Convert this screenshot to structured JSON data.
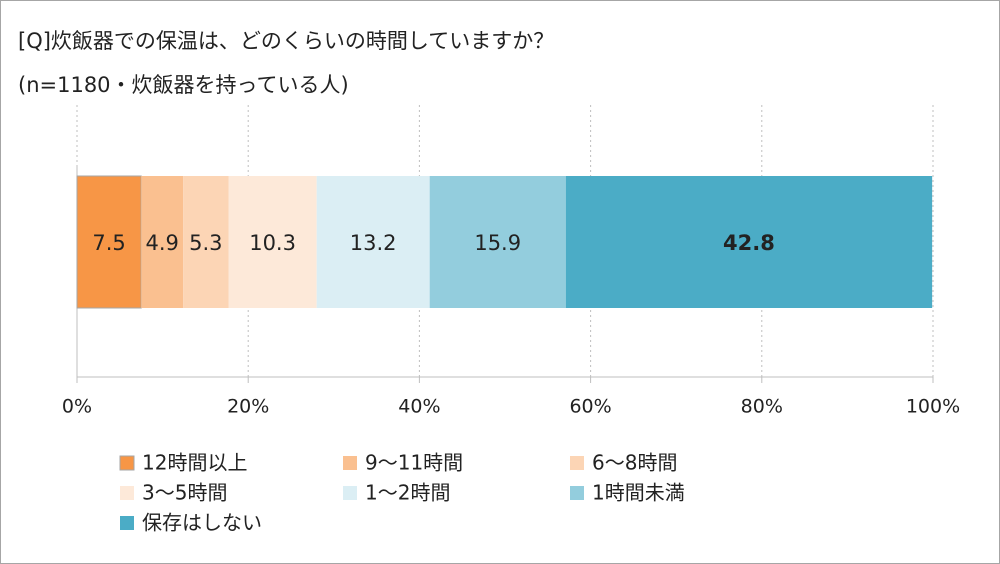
{
  "chart_data": {
    "type": "stacked_percent_barh",
    "title": "[Q]炊飯器での保温は、どのくらいの時間していますか？",
    "subtitle": "(n=1180・炊飯器を持っている人)",
    "series": [
      {
        "name": "12時間以上",
        "color": "#f79646",
        "values": [
          7.5
        ]
      },
      {
        "name": "9～11時間",
        "color": "#fac090",
        "values": [
          4.9
        ]
      },
      {
        "name": "6～8時間",
        "color": "#fcd5b5",
        "values": [
          5.3
        ]
      },
      {
        "name": "3～5時間",
        "color": "#fde9d9",
        "values": [
          10.3
        ]
      },
      {
        "name": "1～2時間",
        "color": "#dbeef4",
        "values": [
          13.2
        ]
      },
      {
        "name": "1時間未満",
        "color": "#93cddd",
        "values": [
          15.9
        ]
      },
      {
        "name": "保存はしない",
        "color": "#4bacc6",
        "values": [
          42.8
        ],
        "label_color": "#e60000"
      }
    ],
    "xlim": [
      0,
      100
    ],
    "xticks": [
      {
        "value": 0,
        "label": "0%"
      },
      {
        "value": 20,
        "label": "20%"
      },
      {
        "value": 40,
        "label": "40%"
      },
      {
        "value": 60,
        "label": "60%"
      },
      {
        "value": 80,
        "label": "80%"
      },
      {
        "value": 100,
        "label": "100%"
      }
    ],
    "grid": true,
    "legend": "bottom"
  }
}
